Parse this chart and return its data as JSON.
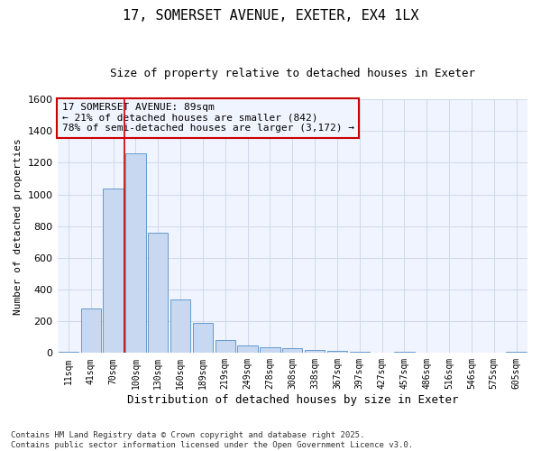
{
  "title_line1": "17, SOMERSET AVENUE, EXETER, EX4 1LX",
  "title_line2": "Size of property relative to detached houses in Exeter",
  "xlabel": "Distribution of detached houses by size in Exeter",
  "ylabel": "Number of detached properties",
  "categories": [
    "11sqm",
    "41sqm",
    "70sqm",
    "100sqm",
    "130sqm",
    "160sqm",
    "189sqm",
    "219sqm",
    "249sqm",
    "278sqm",
    "308sqm",
    "338sqm",
    "367sqm",
    "397sqm",
    "427sqm",
    "457sqm",
    "486sqm",
    "516sqm",
    "546sqm",
    "575sqm",
    "605sqm"
  ],
  "values": [
    5,
    280,
    1035,
    1260,
    760,
    335,
    190,
    80,
    50,
    37,
    28,
    20,
    12,
    8,
    0,
    8,
    0,
    0,
    0,
    0,
    5
  ],
  "bar_color": "#c8d8f0",
  "bar_edge_color": "#6699cc",
  "vline_color": "#cc0000",
  "annotation_box_color": "#cc0000",
  "annotation_text_line1": "17 SOMERSET AVENUE: 89sqm",
  "annotation_text_line2": "← 21% of detached houses are smaller (842)",
  "annotation_text_line3": "78% of semi-detached houses are larger (3,172) →",
  "vline_x": 2.5,
  "ylim": [
    0,
    1600
  ],
  "yticks": [
    0,
    200,
    400,
    600,
    800,
    1000,
    1200,
    1400,
    1600
  ],
  "plot_bg_color": "#f0f4ff",
  "fig_bg_color": "#ffffff",
  "grid_color": "#d0d8e8",
  "footer_line1": "Contains HM Land Registry data © Crown copyright and database right 2025.",
  "footer_line2": "Contains public sector information licensed under the Open Government Licence v3.0.",
  "title1_fontsize": 11,
  "title2_fontsize": 9,
  "xlabel_fontsize": 9,
  "ylabel_fontsize": 8,
  "tick_fontsize": 7,
  "annotation_fontsize": 8,
  "footer_fontsize": 6.5
}
